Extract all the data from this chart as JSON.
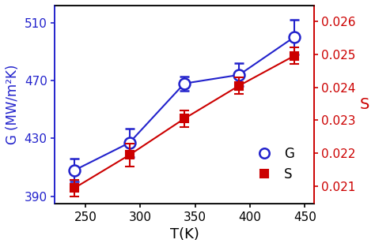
{
  "T": [
    240,
    290,
    340,
    390,
    440
  ],
  "G": [
    408,
    427,
    468,
    474,
    500
  ],
  "G_err": [
    8,
    10,
    5,
    8,
    12
  ],
  "S": [
    0.02095,
    0.02195,
    0.02305,
    0.02405,
    0.02495
  ],
  "S_err": [
    0.00025,
    0.00035,
    0.00025,
    0.00025,
    0.00025
  ],
  "xlabel": "T(K)",
  "ylabel_left": "G (MW/m²K)",
  "ylabel_right": "S",
  "G_color": "#2222cc",
  "S_color": "#cc0000",
  "xlim": [
    222,
    458
  ],
  "ylim_left": [
    385,
    522
  ],
  "ylim_right": [
    0.02048,
    0.02648
  ],
  "yticks_left": [
    390,
    430,
    470,
    510
  ],
  "yticks_right": [
    0.021,
    0.022,
    0.023,
    0.024,
    0.025,
    0.026
  ],
  "xticks": [
    250,
    300,
    350,
    400,
    450
  ],
  "legend_G": "G",
  "legend_S": "S",
  "background_color": "#ffffff",
  "figsize": [
    4.74,
    3.13
  ],
  "dpi": 100
}
